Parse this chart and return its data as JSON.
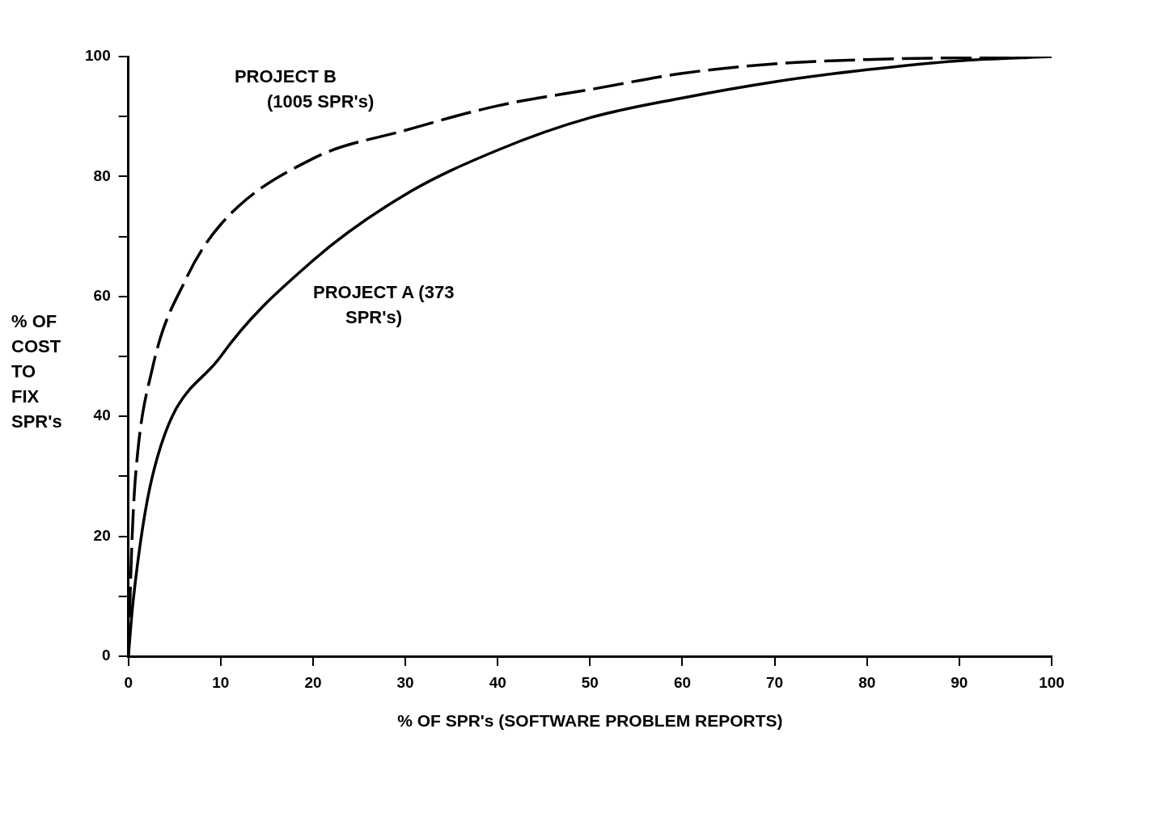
{
  "chart_data": {
    "type": "line",
    "xlabel": "% OF SPR's (SOFTWARE PROBLEM REPORTS)",
    "ylabel": "% OF COST TO FIX SPR's",
    "xlim": [
      0,
      100
    ],
    "xticks": [
      0,
      10,
      20,
      30,
      40,
      50,
      60,
      70,
      80,
      90,
      100
    ],
    "ylim": [
      0,
      100
    ],
    "yticks": [
      0,
      {
        "value": 10,
        "label": null
      },
      20,
      {
        "value": 30,
        "label": null
      },
      40,
      {
        "value": 50,
        "label": null
      },
      60,
      {
        "value": 70,
        "label": null
      },
      80,
      {
        "value": 90,
        "label": null
      },
      100
    ],
    "grid": false,
    "legend": false,
    "marker": "none",
    "series": [
      {
        "name": "PROJECT B (1005 SPR's)",
        "color": "#000000",
        "line_style": "dashed",
        "x": [
          0,
          0.4,
          0.8,
          2.6,
          6.2,
          10,
          20,
          30,
          40,
          50,
          60,
          70,
          80,
          90,
          100
        ],
        "values": [
          0,
          19.7,
          30.5,
          48,
          62.8,
          72,
          83,
          87.7,
          91.8,
          94.5,
          97.2,
          98.8,
          99.5,
          99.8,
          100
        ]
      },
      {
        "name": "PROJECT A (373 SPR's)",
        "color": "#000000",
        "line_style": "solid",
        "x": [
          0,
          0.5,
          2.6,
          10,
          20,
          30,
          40,
          50,
          60,
          70,
          80,
          90,
          100
        ],
        "values": [
          0,
          9,
          30,
          50,
          66,
          77,
          84.4,
          89.8,
          93.1,
          95.8,
          97.8,
          99.3,
          100
        ]
      }
    ]
  }
}
